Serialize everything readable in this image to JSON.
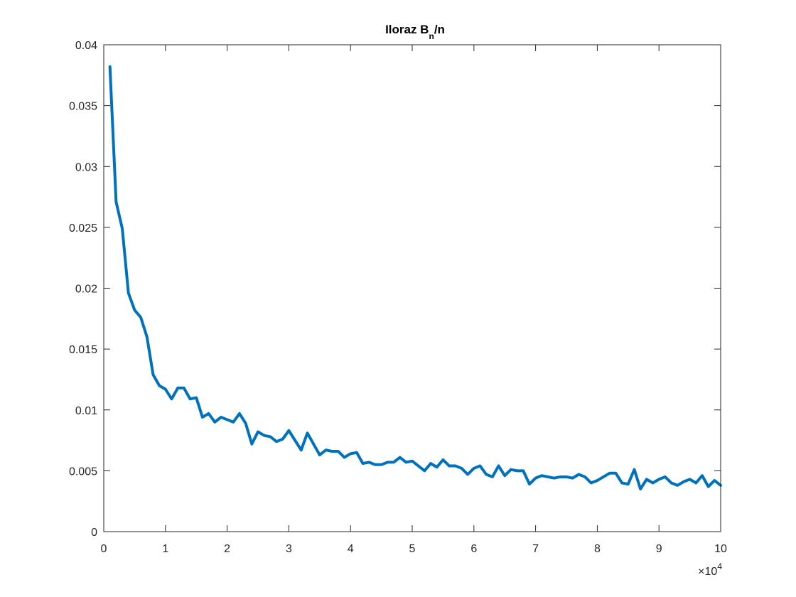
{
  "chart_data": {
    "type": "line",
    "title": {
      "prefix": "Iloraz B",
      "subscript": "n",
      "suffix": "/n"
    },
    "xlabel": "",
    "ylabel": "",
    "x_exponent_label": "×10",
    "x_exponent": "4",
    "xlim": [
      0,
      100000
    ],
    "ylim": [
      0,
      0.04
    ],
    "x_ticks": [
      0,
      10000,
      20000,
      30000,
      40000,
      50000,
      60000,
      70000,
      80000,
      90000,
      100000
    ],
    "x_tick_labels": [
      "0",
      "1",
      "2",
      "3",
      "4",
      "5",
      "6",
      "7",
      "8",
      "9",
      "10"
    ],
    "y_ticks": [
      0,
      0.005,
      0.01,
      0.015,
      0.02,
      0.025,
      0.03,
      0.035,
      0.04
    ],
    "y_tick_labels": [
      "0",
      "0.005",
      "0.01",
      "0.015",
      "0.02",
      "0.025",
      "0.03",
      "0.035",
      "0.04"
    ],
    "grid": false,
    "line_color": "#0072BD",
    "series": [
      {
        "x": [
          1000,
          2000,
          3000,
          4000,
          5000,
          6000,
          7000,
          8000,
          9000,
          10000,
          11000,
          12000,
          13000,
          14000,
          15000,
          16000,
          17000,
          18000,
          19000,
          20000,
          21000,
          22000,
          23000,
          24000,
          25000,
          26000,
          27000,
          28000,
          29000,
          30000,
          31000,
          32000,
          33000,
          34000,
          35000,
          36000,
          37000,
          38000,
          39000,
          40000,
          41000,
          42000,
          43000,
          44000,
          45000,
          46000,
          47000,
          48000,
          49000,
          50000,
          51000,
          52000,
          53000,
          54000,
          55000,
          56000,
          57000,
          58000,
          59000,
          60000,
          61000,
          62000,
          63000,
          64000,
          65000,
          66000,
          67000,
          68000,
          69000,
          70000,
          71000,
          72000,
          73000,
          74000,
          75000,
          76000,
          77000,
          78000,
          79000,
          80000,
          81000,
          82000,
          83000,
          84000,
          85000,
          86000,
          87000,
          88000,
          89000,
          90000,
          91000,
          92000,
          93000,
          94000,
          95000,
          96000,
          97000,
          98000,
          99000,
          100000
        ],
        "values": [
          0.0382,
          0.0271,
          0.0249,
          0.0196,
          0.0182,
          0.0176,
          0.016,
          0.0129,
          0.012,
          0.0117,
          0.0109,
          0.0118,
          0.0118,
          0.0109,
          0.011,
          0.0094,
          0.0097,
          0.009,
          0.0094,
          0.0092,
          0.009,
          0.0097,
          0.0089,
          0.0072,
          0.0082,
          0.0079,
          0.0078,
          0.0074,
          0.0076,
          0.0083,
          0.0075,
          0.0067,
          0.0081,
          0.0072,
          0.0063,
          0.0067,
          0.0066,
          0.0066,
          0.0061,
          0.0064,
          0.0065,
          0.0056,
          0.0057,
          0.0055,
          0.0055,
          0.0057,
          0.0057,
          0.0061,
          0.0057,
          0.0058,
          0.0054,
          0.005,
          0.0056,
          0.0053,
          0.0059,
          0.0054,
          0.0054,
          0.0052,
          0.0047,
          0.0052,
          0.0054,
          0.0047,
          0.0045,
          0.0054,
          0.0046,
          0.0051,
          0.005,
          0.005,
          0.0039,
          0.0044,
          0.0046,
          0.0045,
          0.0044,
          0.0045,
          0.0045,
          0.0044,
          0.0047,
          0.0045,
          0.004,
          0.0042,
          0.0045,
          0.0048,
          0.0048,
          0.004,
          0.0039,
          0.0051,
          0.0035,
          0.0043,
          0.004,
          0.0043,
          0.0045,
          0.004,
          0.0038,
          0.0041,
          0.0043,
          0.004,
          0.0046,
          0.0037,
          0.0042,
          0.0038
        ]
      }
    ]
  }
}
